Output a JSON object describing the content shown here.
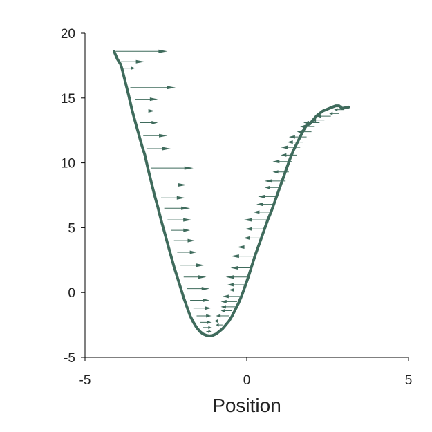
{
  "chart_data": {
    "type": "line",
    "title": "",
    "xlabel": "Position",
    "ylabel": "",
    "xlim": [
      -5,
      5
    ],
    "ylim": [
      -5,
      20
    ],
    "xticks": [
      -5,
      0,
      5
    ],
    "yticks": [
      -5,
      0,
      5,
      10,
      15,
      20
    ],
    "x_tick_labels": [
      "-5",
      "0",
      "5"
    ],
    "y_tick_labels": [
      "-5",
      "0",
      "5",
      "10",
      "15",
      "20"
    ],
    "grid": false,
    "legend": "none",
    "colors": {
      "curve": "#3f6b5c",
      "arrows": "#3f6b5c",
      "axis": "#000000"
    },
    "series": [
      {
        "x": [
          -4.1,
          -4.0,
          -3.9,
          -3.85,
          -3.75,
          -3.65,
          -3.55,
          -3.45,
          -3.35,
          -3.25,
          -3.15,
          -3.05,
          -2.95,
          -2.85,
          -2.75,
          -2.65,
          -2.55,
          -2.45,
          -2.35,
          -2.25,
          -2.15,
          -2.05,
          -1.95,
          -1.85,
          -1.75,
          -1.65,
          -1.55,
          -1.45,
          -1.35,
          -1.25,
          -1.15,
          -1.05,
          -0.95,
          -0.85,
          -0.75,
          -0.65,
          -0.55,
          -0.45,
          -0.35,
          -0.25,
          -0.15,
          -0.05,
          0.05,
          0.15,
          0.25,
          0.35,
          0.45,
          0.55,
          0.65,
          0.75,
          0.85,
          0.95,
          1.05,
          1.15,
          1.25,
          1.35,
          1.45,
          1.55,
          1.65,
          1.75,
          1.85,
          1.95,
          2.05,
          2.15,
          2.25,
          2.35,
          2.45,
          2.55,
          2.65,
          2.75,
          2.85,
          2.95,
          3.05,
          3.15
        ],
        "y": [
          18.6,
          18.0,
          17.6,
          17.2,
          16.2,
          15.2,
          14.1,
          13.2,
          12.3,
          11.4,
          10.6,
          9.5,
          8.5,
          7.5,
          6.6,
          5.6,
          4.7,
          3.8,
          2.9,
          2.0,
          1.2,
          0.4,
          -0.4,
          -1.1,
          -1.8,
          -2.3,
          -2.7,
          -3.0,
          -3.2,
          -3.3,
          -3.35,
          -3.3,
          -3.2,
          -3.0,
          -2.8,
          -2.5,
          -2.2,
          -1.8,
          -1.3,
          -0.8,
          -0.2,
          0.5,
          1.2,
          2.0,
          2.8,
          3.5,
          4.2,
          4.9,
          5.6,
          6.2,
          6.9,
          7.6,
          8.3,
          9.0,
          9.7,
          10.4,
          11.0,
          11.5,
          12.0,
          12.5,
          12.9,
          13.0,
          13.3,
          13.6,
          13.8,
          14.0,
          14.1,
          14.2,
          14.3,
          14.4,
          14.4,
          14.2,
          14.25,
          14.3
        ]
      }
    ],
    "arrows": [
      {
        "x": -4.05,
        "y": 18.6,
        "dx": 1.6
      },
      {
        "x": -3.95,
        "y": 17.8,
        "dx": 0.8
      },
      {
        "x": -3.85,
        "y": 17.3,
        "dx": 0.4
      },
      {
        "x": -3.6,
        "y": 15.8,
        "dx": 1.4
      },
      {
        "x": -3.45,
        "y": 14.9,
        "dx": 0.7
      },
      {
        "x": -3.4,
        "y": 14.0,
        "dx": 0.55
      },
      {
        "x": -3.3,
        "y": 13.1,
        "dx": 0.55
      },
      {
        "x": -3.2,
        "y": 12.1,
        "dx": 0.75
      },
      {
        "x": -3.1,
        "y": 11.1,
        "dx": 0.75
      },
      {
        "x": -2.95,
        "y": 9.6,
        "dx": 1.3
      },
      {
        "x": -2.8,
        "y": 8.3,
        "dx": 0.95
      },
      {
        "x": -2.65,
        "y": 7.3,
        "dx": 0.75
      },
      {
        "x": -2.55,
        "y": 6.5,
        "dx": 0.8
      },
      {
        "x": -2.45,
        "y": 5.6,
        "dx": 0.75
      },
      {
        "x": -2.35,
        "y": 4.8,
        "dx": 0.6
      },
      {
        "x": -2.25,
        "y": 4.0,
        "dx": 0.65
      },
      {
        "x": -2.15,
        "y": 3.1,
        "dx": 0.6
      },
      {
        "x": -2.05,
        "y": 2.1,
        "dx": 0.75
      },
      {
        "x": -1.95,
        "y": 1.2,
        "dx": 0.7
      },
      {
        "x": -1.85,
        "y": 0.3,
        "dx": 0.7
      },
      {
        "x": -1.75,
        "y": -0.6,
        "dx": 0.6
      },
      {
        "x": -1.65,
        "y": -1.2,
        "dx": 0.55
      },
      {
        "x": -1.55,
        "y": -1.8,
        "dx": 0.45
      },
      {
        "x": -1.45,
        "y": -2.3,
        "dx": 0.35
      },
      {
        "x": -1.35,
        "y": -2.7,
        "dx": 0.25
      },
      {
        "x": -1.25,
        "y": -3.0,
        "dx": 0.15
      },
      {
        "x": -0.75,
        "y": -2.5,
        "dx": -0.2
      },
      {
        "x": -0.7,
        "y": -2.2,
        "dx": -0.3
      },
      {
        "x": -0.55,
        "y": -1.8,
        "dx": -0.4
      },
      {
        "x": -0.45,
        "y": -1.4,
        "dx": -0.35
      },
      {
        "x": -0.35,
        "y": -1.1,
        "dx": -0.45
      },
      {
        "x": -0.3,
        "y": -0.7,
        "dx": -0.5
      },
      {
        "x": -0.2,
        "y": -0.3,
        "dx": -0.55
      },
      {
        "x": -0.1,
        "y": 0.2,
        "dx": -0.45
      },
      {
        "x": -0.05,
        "y": 0.6,
        "dx": -0.55
      },
      {
        "x": 0.05,
        "y": 1.2,
        "dx": -0.7
      },
      {
        "x": 0.15,
        "y": 1.9,
        "dx": -0.65
      },
      {
        "x": 0.25,
        "y": 2.8,
        "dx": -0.75
      },
      {
        "x": 0.35,
        "y": 3.5,
        "dx": -0.65
      },
      {
        "x": 0.45,
        "y": 4.2,
        "dx": -0.55
      },
      {
        "x": 0.55,
        "y": 4.9,
        "dx": -0.6
      },
      {
        "x": 0.65,
        "y": 5.6,
        "dx": -0.75
      },
      {
        "x": 0.75,
        "y": 6.2,
        "dx": -0.55
      },
      {
        "x": 0.85,
        "y": 6.8,
        "dx": -0.55
      },
      {
        "x": 0.95,
        "y": 7.4,
        "dx": -0.6
      },
      {
        "x": 1.05,
        "y": 8.1,
        "dx": -0.5
      },
      {
        "x": 1.2,
        "y": 8.6,
        "dx": -0.65
      },
      {
        "x": 1.3,
        "y": 9.3,
        "dx": -0.5
      },
      {
        "x": 1.4,
        "y": 10.1,
        "dx": -0.6
      },
      {
        "x": 1.55,
        "y": 10.6,
        "dx": -0.5
      },
      {
        "x": 1.65,
        "y": 11.2,
        "dx": -0.6
      },
      {
        "x": 1.75,
        "y": 11.6,
        "dx": -0.5
      },
      {
        "x": 1.85,
        "y": 12.0,
        "dx": -0.55
      },
      {
        "x": 2.0,
        "y": 12.4,
        "dx": -0.45
      },
      {
        "x": 2.1,
        "y": 12.8,
        "dx": -0.45
      },
      {
        "x": 2.25,
        "y": 13.1,
        "dx": -0.5
      },
      {
        "x": 2.4,
        "y": 13.3,
        "dx": -0.4
      },
      {
        "x": 2.6,
        "y": 13.6,
        "dx": -0.45
      },
      {
        "x": 2.85,
        "y": 13.8,
        "dx": -0.3
      },
      {
        "x": 3.0,
        "y": 14.1,
        "dx": -0.3
      },
      {
        "x": 3.1,
        "y": 14.3,
        "dx": -0.25
      }
    ]
  }
}
